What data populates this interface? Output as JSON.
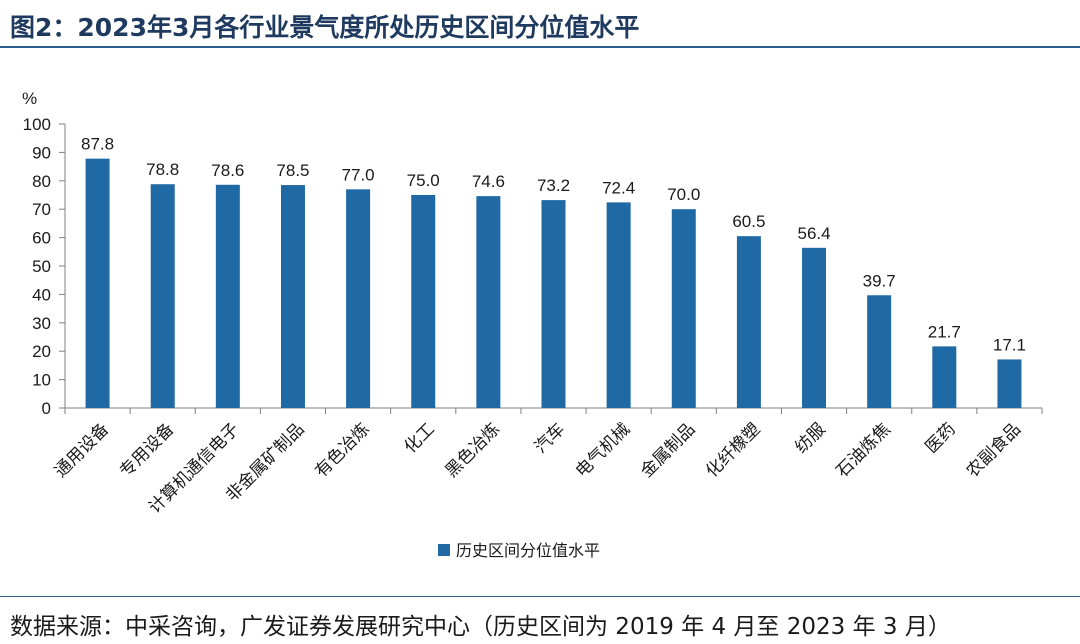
{
  "title": "图2：2023年3月各行业景气度所处历史区间分位值水平",
  "source": "数据来源：中采咨询，广发证券发展研究中心（历史区间为 2019 年 4 月至 2023 年 3 月）",
  "colors": {
    "bar": "#1f6aa5",
    "axis": "#808080",
    "title": "#1f3a5f"
  },
  "chart_data": {
    "type": "bar",
    "title": "",
    "ylabel": "%",
    "ylim": [
      0,
      100
    ],
    "yticks": [
      0,
      10,
      20,
      30,
      40,
      50,
      60,
      70,
      80,
      90,
      100
    ],
    "grid": false,
    "legend_position": "bottom-center",
    "categories": [
      "通用设备",
      "专用设备",
      "计算机通信电子",
      "非金属矿制品",
      "有色冶炼",
      "化工",
      "黑色冶炼",
      "汽车",
      "电气机械",
      "金属制品",
      "化纤橡塑",
      "纺服",
      "石油炼焦",
      "医药",
      "农副食品"
    ],
    "series": [
      {
        "name": "历史区间分位值水平",
        "values": [
          87.8,
          78.8,
          78.6,
          78.5,
          77.0,
          75.0,
          74.6,
          73.2,
          72.4,
          70.0,
          60.5,
          56.4,
          39.7,
          21.7,
          17.1
        ],
        "labels": [
          "87.8",
          "78.8",
          "78.6",
          "78.5",
          "77.0",
          "75.0",
          "74.6",
          "73.2",
          "72.4",
          "70.0",
          "60.5",
          "56.4",
          "39.7",
          "21.7",
          "17.1"
        ]
      }
    ]
  }
}
